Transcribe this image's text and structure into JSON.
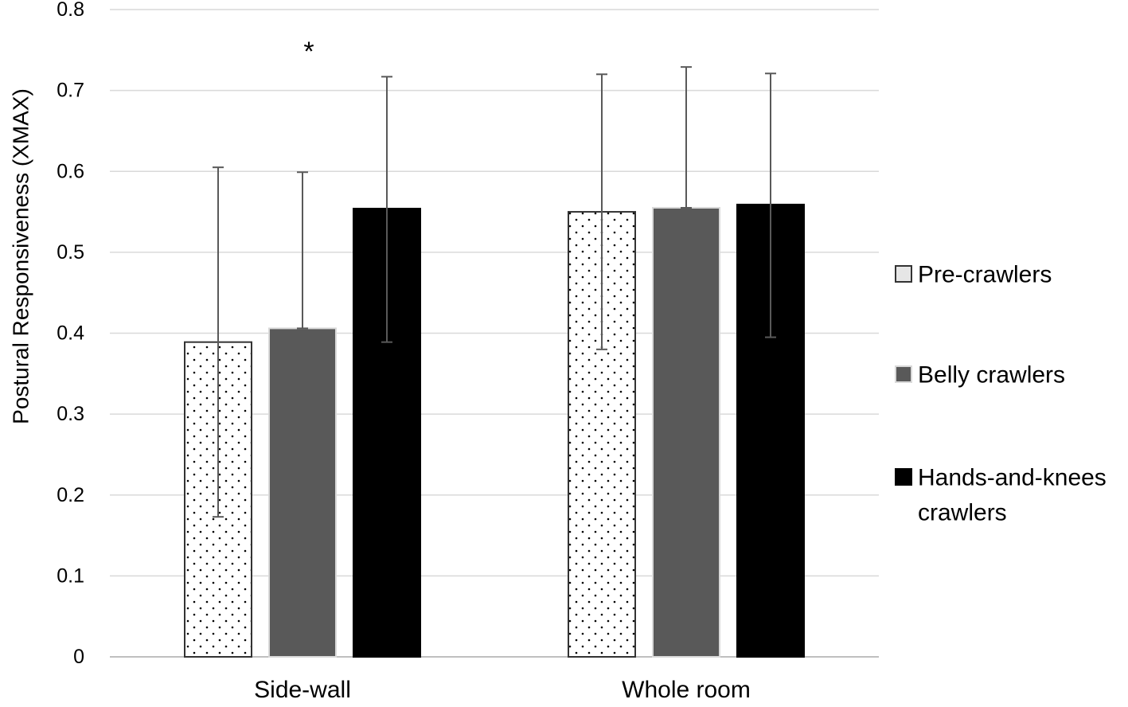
{
  "chart_data": {
    "type": "bar",
    "title": "",
    "xlabel": "",
    "ylabel": "Postural Responsiveness (XMAX)",
    "ylim": [
      0,
      0.8
    ],
    "yticks": [
      "0",
      "0.1",
      "0.2",
      "0.3",
      "0.4",
      "0.5",
      "0.6",
      "0.7",
      "0.8"
    ],
    "grid": true,
    "legend_position": "right",
    "categories": [
      "Side-wall",
      "Whole room"
    ],
    "series": [
      {
        "name": "Pre-crawlers",
        "legend_lines": [
          "Pre-crawlers"
        ],
        "values": [
          0.389,
          0.55
        ],
        "error_low": [
          0.173,
          0.38
        ],
        "error_high": [
          0.605,
          0.72
        ],
        "fill": "dots",
        "color": "#ffffff",
        "stroke": "#333333"
      },
      {
        "name": "Belly crawlers",
        "legend_lines": [
          "Belly crawlers"
        ],
        "values": [
          0.406,
          0.555
        ],
        "error_low": [
          0.406,
          0.555
        ],
        "error_high": [
          0.599,
          0.729
        ],
        "fill": "solid",
        "color": "#595959",
        "stroke": "#d9d9d9"
      },
      {
        "name": "Hands-and-knees crawlers",
        "legend_lines": [
          "Hands-and-knees",
          "crawlers"
        ],
        "values": [
          0.554,
          0.559
        ],
        "error_low": [
          0.389,
          0.395
        ],
        "error_high": [
          0.717,
          0.721
        ],
        "fill": "solid",
        "color": "#000000",
        "stroke": "#000000"
      }
    ],
    "annotations": [
      {
        "text": "*",
        "category": "Side-wall",
        "series": "Belly crawlers"
      }
    ],
    "colors": {
      "grid": "#d9d9d9",
      "error_bar": "#595959"
    }
  }
}
